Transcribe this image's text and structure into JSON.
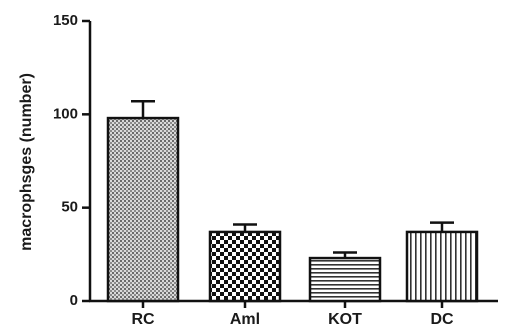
{
  "chart_data": {
    "type": "bar",
    "categories": [
      "RC",
      "Aml",
      "KOT",
      "DC"
    ],
    "values": [
      98,
      37,
      23,
      37
    ],
    "errors": [
      9,
      4,
      3,
      5
    ],
    "ylabel": "macrophsges (number)",
    "xlabel": "",
    "ylim": [
      0,
      150
    ],
    "yticks": [
      0,
      50,
      100,
      150
    ],
    "patterns": [
      "dense-dots",
      "checker",
      "horizontal-lines",
      "vertical-lines"
    ],
    "bar_edge_color": "#111111",
    "grid": false,
    "legend": "none"
  }
}
